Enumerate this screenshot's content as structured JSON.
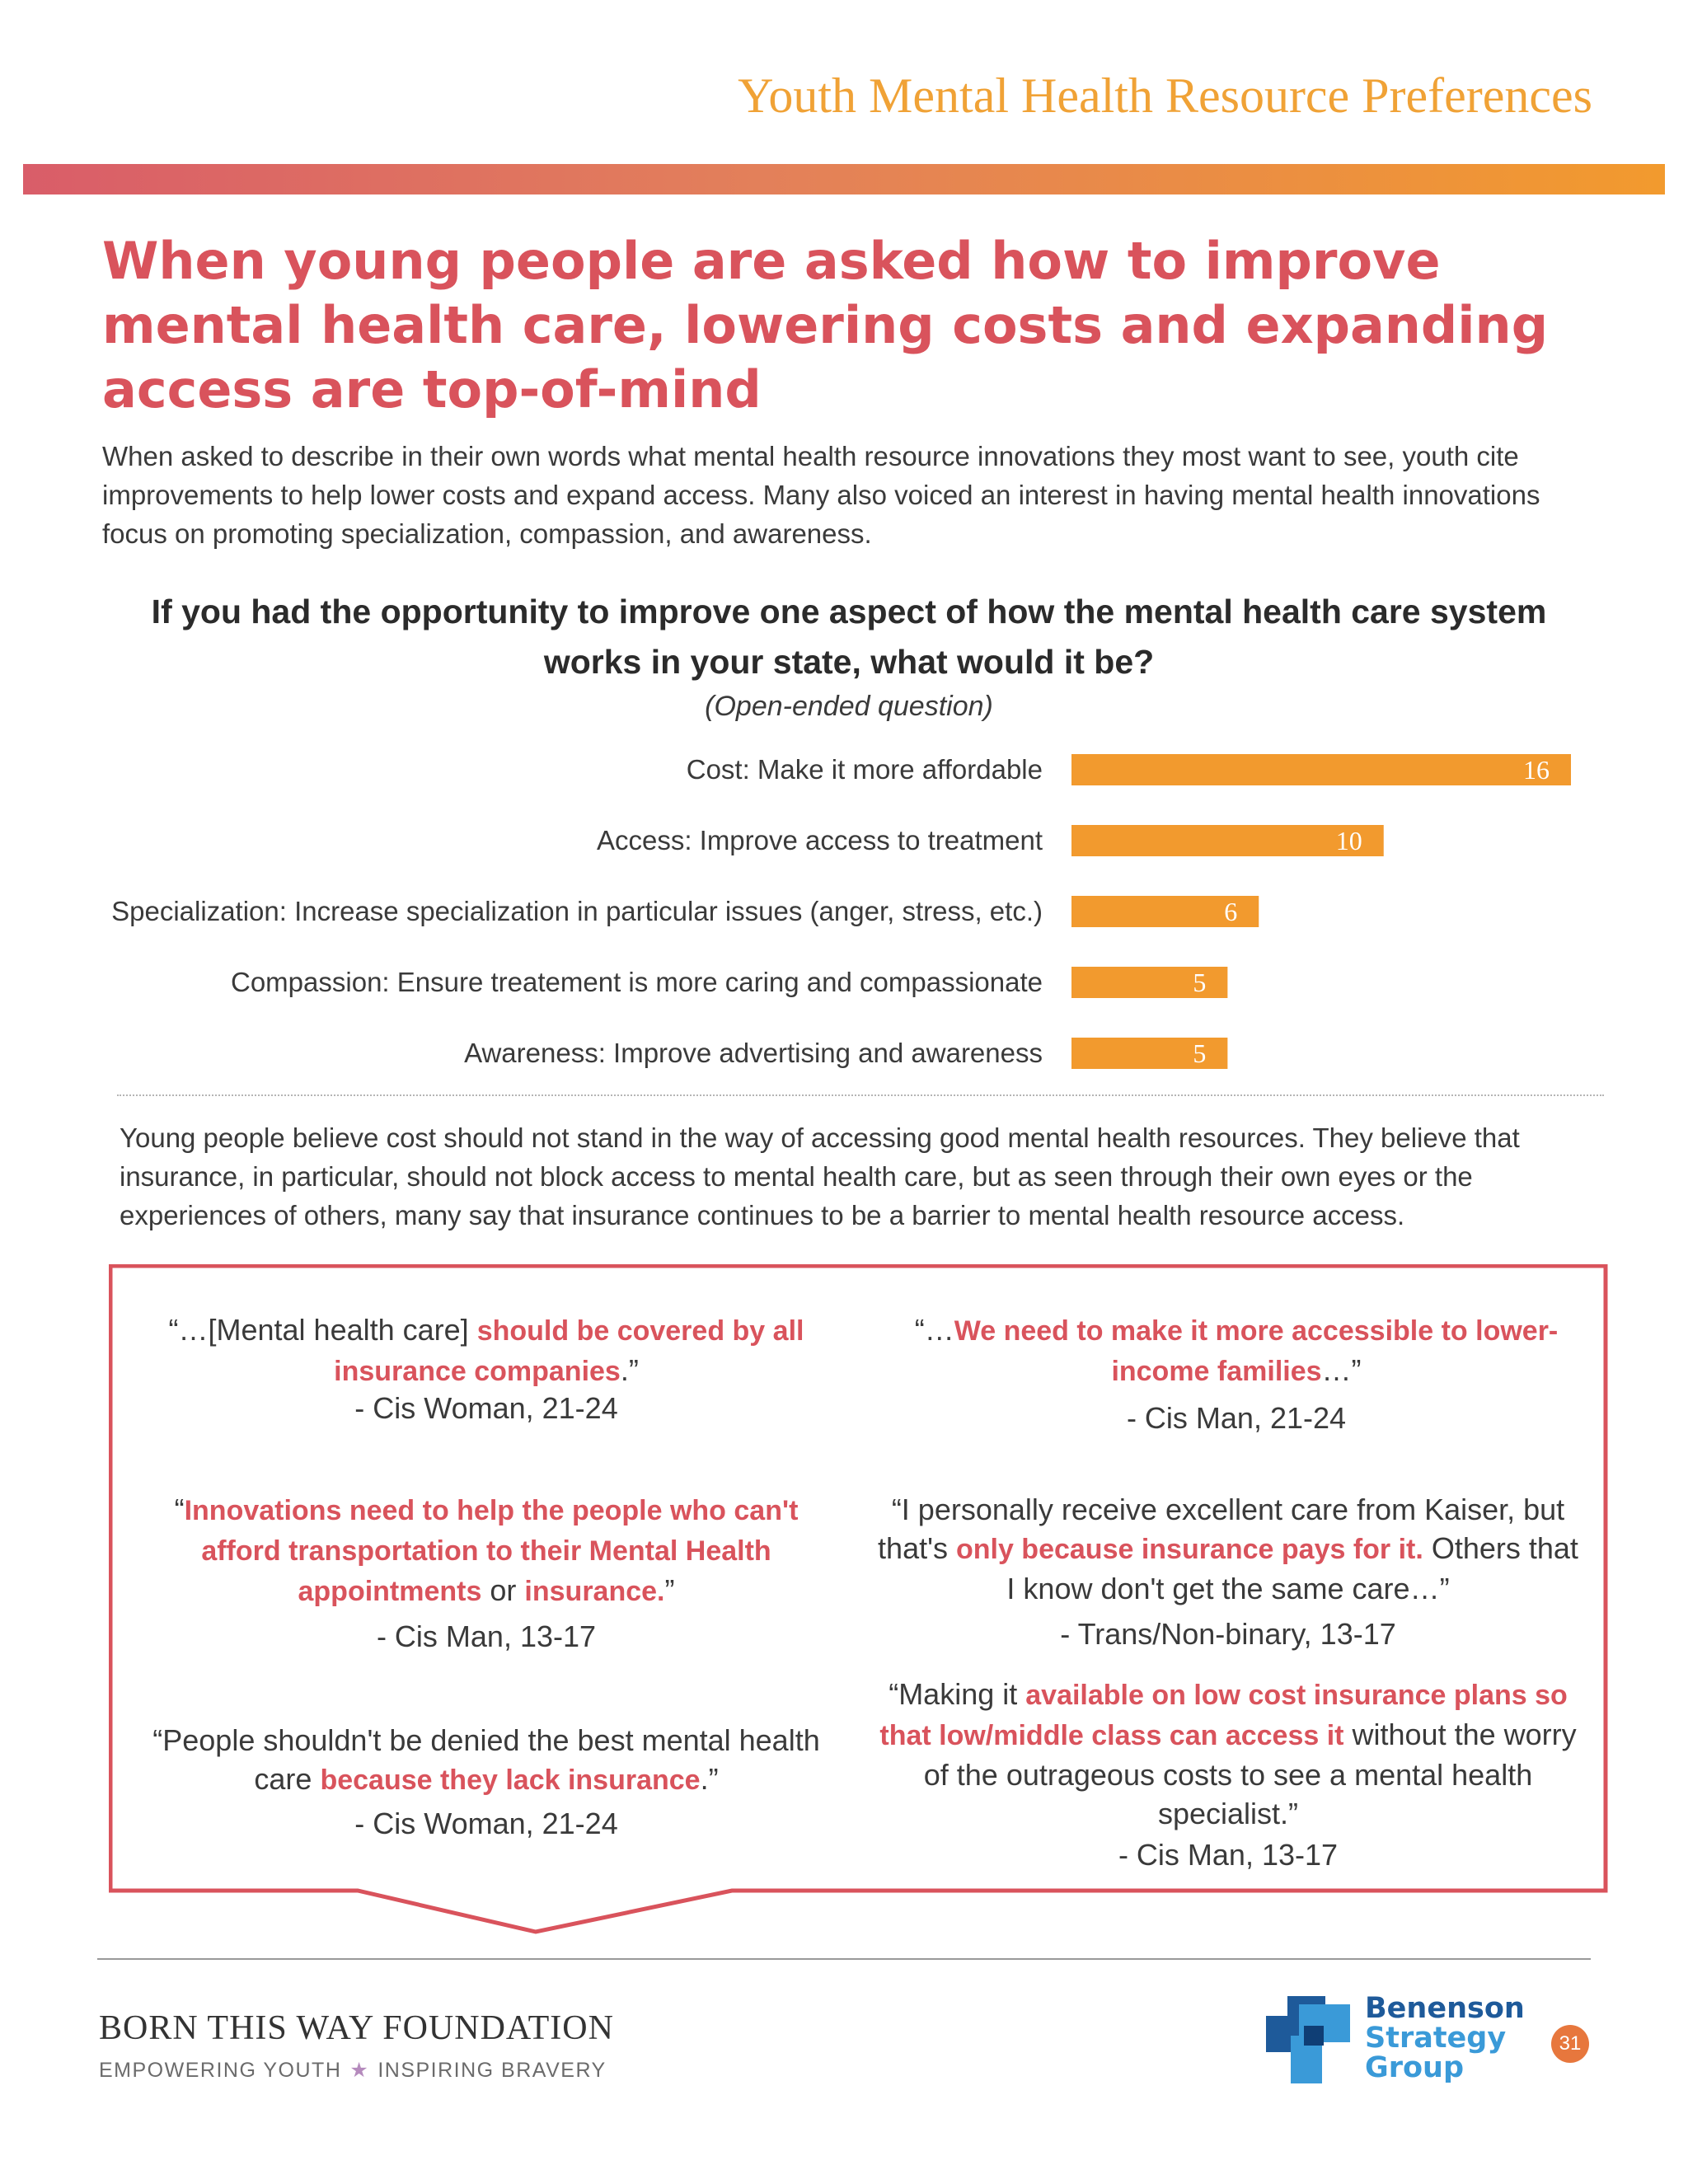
{
  "header": {
    "report_title": "Youth Mental Health Resource Preferences",
    "headline": "When young people are asked how to improve mental health care, lowering costs and expanding access are top-of-mind",
    "intro": "When asked to describe in their own words what mental health resource innovations they most want to see, youth cite improvements to help lower costs and expand access. Many also voiced an interest in having mental health innovations focus on promoting specialization, compassion, and awareness."
  },
  "question": {
    "title": "If you had the opportunity to improve one aspect of how the mental health care system works in your state, what would it be?",
    "subtitle": "(Open-ended question)"
  },
  "chart_data": {
    "type": "bar",
    "orientation": "horizontal",
    "categories": [
      "Cost: Make it more affordable",
      "Access: Improve access to treatment",
      "Specialization: Increase specialization in particular issues (anger, stress, etc.)",
      "Compassion: Ensure treatement is more caring and compassionate",
      "Awareness: Improve advertising and awareness"
    ],
    "values": [
      16,
      10,
      6,
      5,
      5
    ],
    "value_labels": [
      "16",
      "10",
      "6",
      "5",
      "5"
    ],
    "xlim": [
      0,
      16
    ],
    "bar_color": "#f29a2e",
    "grid": false,
    "legend": "none"
  },
  "summary": "Young people believe cost should not stand in the way of accessing good mental health resources. They believe that insurance, in particular, should not block access to mental health care, but as seen through their own eyes or the experiences of others, many say that insurance continues to be a barrier to mental health resource access.",
  "quotes": {
    "q1": {
      "open": "“…[Mental health care] ",
      "highlight": "should be covered by all insurance companies",
      "close": ".”",
      "attribution": "- Cis Woman, 21-24"
    },
    "q2": {
      "open": "“…",
      "highlight": "We need to make it more accessible to lower-income families",
      "close": "…”",
      "attribution": "-  Cis Man, 21-24"
    },
    "q3": {
      "open": "“",
      "highlight1": "Innovations need to help the people who can't afford transportation to their Mental Health appointments",
      "middle": " or ",
      "highlight2": "insurance.",
      "close": "”",
      "attribution": "- Cis Man, 13-17"
    },
    "q4": {
      "open": "“I personally receive excellent care from Kaiser, but that's ",
      "highlight": "only because insurance pays for it.",
      "close": " Others that I know don't get the same care…”",
      "attribution": "- Trans/Non-binary, 13-17"
    },
    "q5": {
      "open": "“People shouldn't be denied the best mental health care ",
      "highlight": "because they lack insurance",
      "close": ".”",
      "attribution": "-  Cis Woman, 21-24"
    },
    "q6": {
      "open": "“Making it ",
      "highlight": "available on low cost insurance plans so that low/middle class can access it",
      "close": " without the worry of the outrageous costs to see a mental health specialist.”",
      "attribution": "- Cis Man, 13-17"
    }
  },
  "footer": {
    "foundation_name": "BORN THIS WAY FOUNDATION",
    "tagline_left": "EMPOWERING YOUTH",
    "tagline_star": "★",
    "tagline_right": "INSPIRING BRAVERY",
    "bsg_line1": "Benenson",
    "bsg_line2": "Strategy",
    "bsg_line3": "Group",
    "page_number": "31"
  },
  "colors": {
    "accent_red": "#d9535c",
    "accent_orange": "#f29a2e",
    "title_gold": "#f0a236",
    "bsg_blue": "#1e5a9a",
    "bsg_light_blue": "#3a9ad8"
  }
}
